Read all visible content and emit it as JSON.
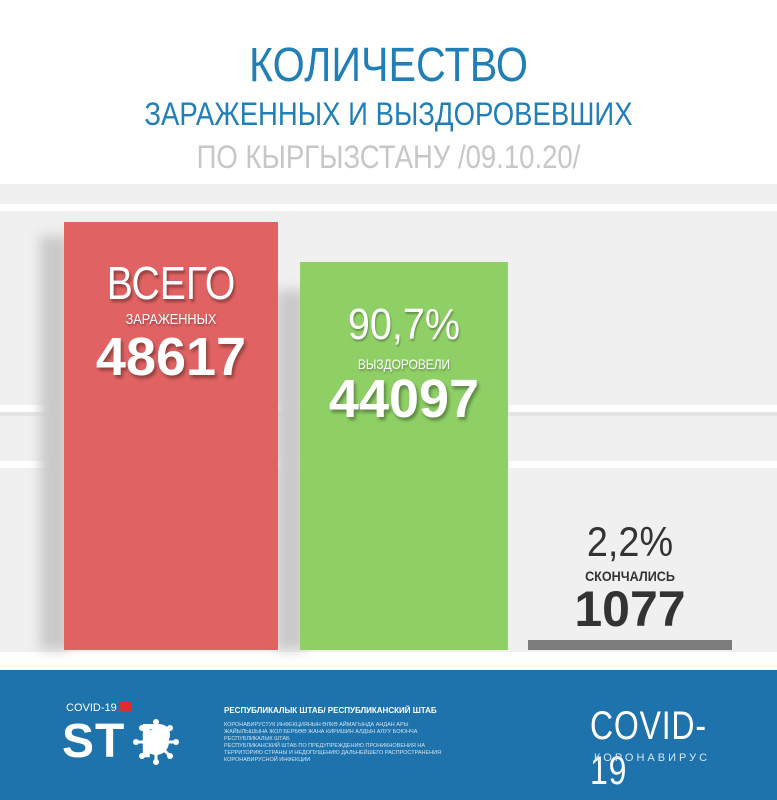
{
  "header": {
    "title_line1": "КОЛИЧЕСТВО",
    "title_line2": "ЗАРАЖЕННЫХ И ВЫЗДОРОВЕВШИХ",
    "title_line3": "ПО КЫРГЫЗСТАНУ  /09.10.20/"
  },
  "chart_data": {
    "type": "bar",
    "categories": [
      "ЗАРАЖЕННЫХ",
      "ВЫЗДОРОВЕЛИ",
      "СКОНЧАЛИСЬ"
    ],
    "values": [
      48617,
      44097,
      1077
    ],
    "bars": [
      {
        "top_label": "ВСЕГО",
        "label": "ЗАРАЖЕННЫХ",
        "value": "48617",
        "percent": ""
      },
      {
        "top_label": "",
        "label": "ВЫЗДОРОВЕЛИ",
        "value": "44097",
        "percent": "90,7%"
      },
      {
        "top_label": "",
        "label": "СКОНЧАЛИСЬ",
        "value": "1077",
        "percent": "2,2%"
      }
    ],
    "colors": [
      "#e06262",
      "#8fd066",
      "#7d7d7d"
    ],
    "xlabel": "",
    "ylabel": "",
    "grid": false
  },
  "footer": {
    "covid19_small": "COVID-19",
    "stop_word": "ST  P",
    "staff_title": "РЕСПУБЛИКАЛЫК ШТАБ/ РЕСПУБЛИКАНСКИЙ ШТАБ",
    "staff_text_kg": "КОРОНАВИРУСТУК ИНФЕКЦИЯНЫН ӨЛКӨ АЙМАГЫНДА АНДАН АРЫ ЖАЙЫЛЫШЫНА ЖОЛ БЕРБӨӨ ЖАНА КИРИШИН АЛДЫН АЛУУ БОЮНЧА РЕСПУБЛИКАЛЫК ШТАБ",
    "staff_text_ru": "РЕСПУБЛИКАНСКИЙ ШТАБ ПО ПРЕДУПРЕЖДЕНИЮ ПРОНИКНОВЕНИЯ НА ТЕРРИТОРИЮ СТРАНЫ И НЕДОПУЩЕНИЮ ДАЛЬНЕЙШЕГО РАСПРОСТРАНЕНИЯ КОРОНАВИРУСНОЙ ИНФЕКЦИИ",
    "covid_title": "COVID-19",
    "corona_text": "КОРОНАВИРУС"
  }
}
